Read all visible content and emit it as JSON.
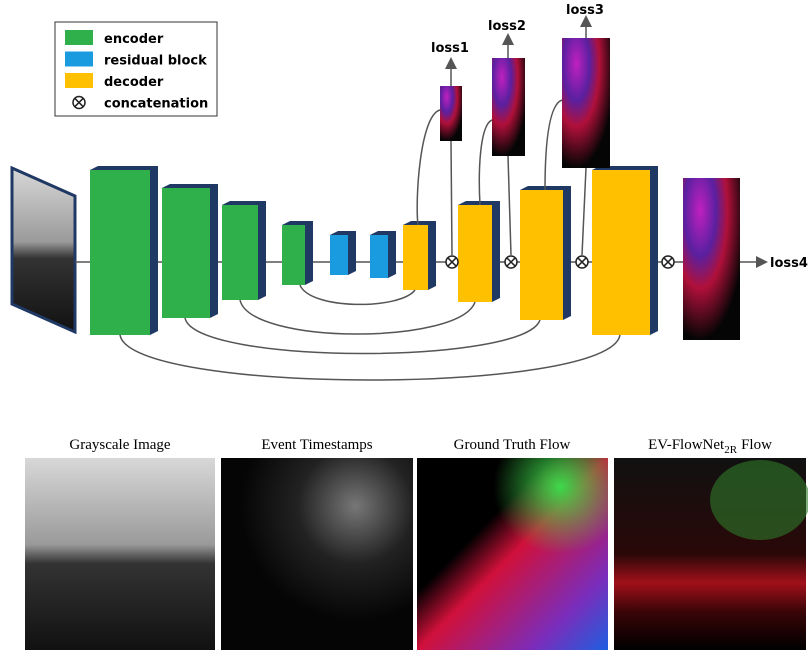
{
  "legend": [
    {
      "label": "encoder",
      "color": "#2fb04a"
    },
    {
      "label": "residual block",
      "color": "#1a9be0"
    },
    {
      "label": "decoder",
      "color": "#ffc000"
    },
    {
      "label": "concatenation"
    }
  ],
  "losses": [
    "loss1",
    "loss2",
    "loss3",
    "loss4"
  ],
  "panels": [
    {
      "caption": "Grayscale Image"
    },
    {
      "caption": "Event Timestamps"
    },
    {
      "caption": "Ground Truth Flow"
    },
    {
      "caption": "EV-FlowNet",
      "caption_sub": "2R",
      "caption_tail": "Flow"
    }
  ]
}
